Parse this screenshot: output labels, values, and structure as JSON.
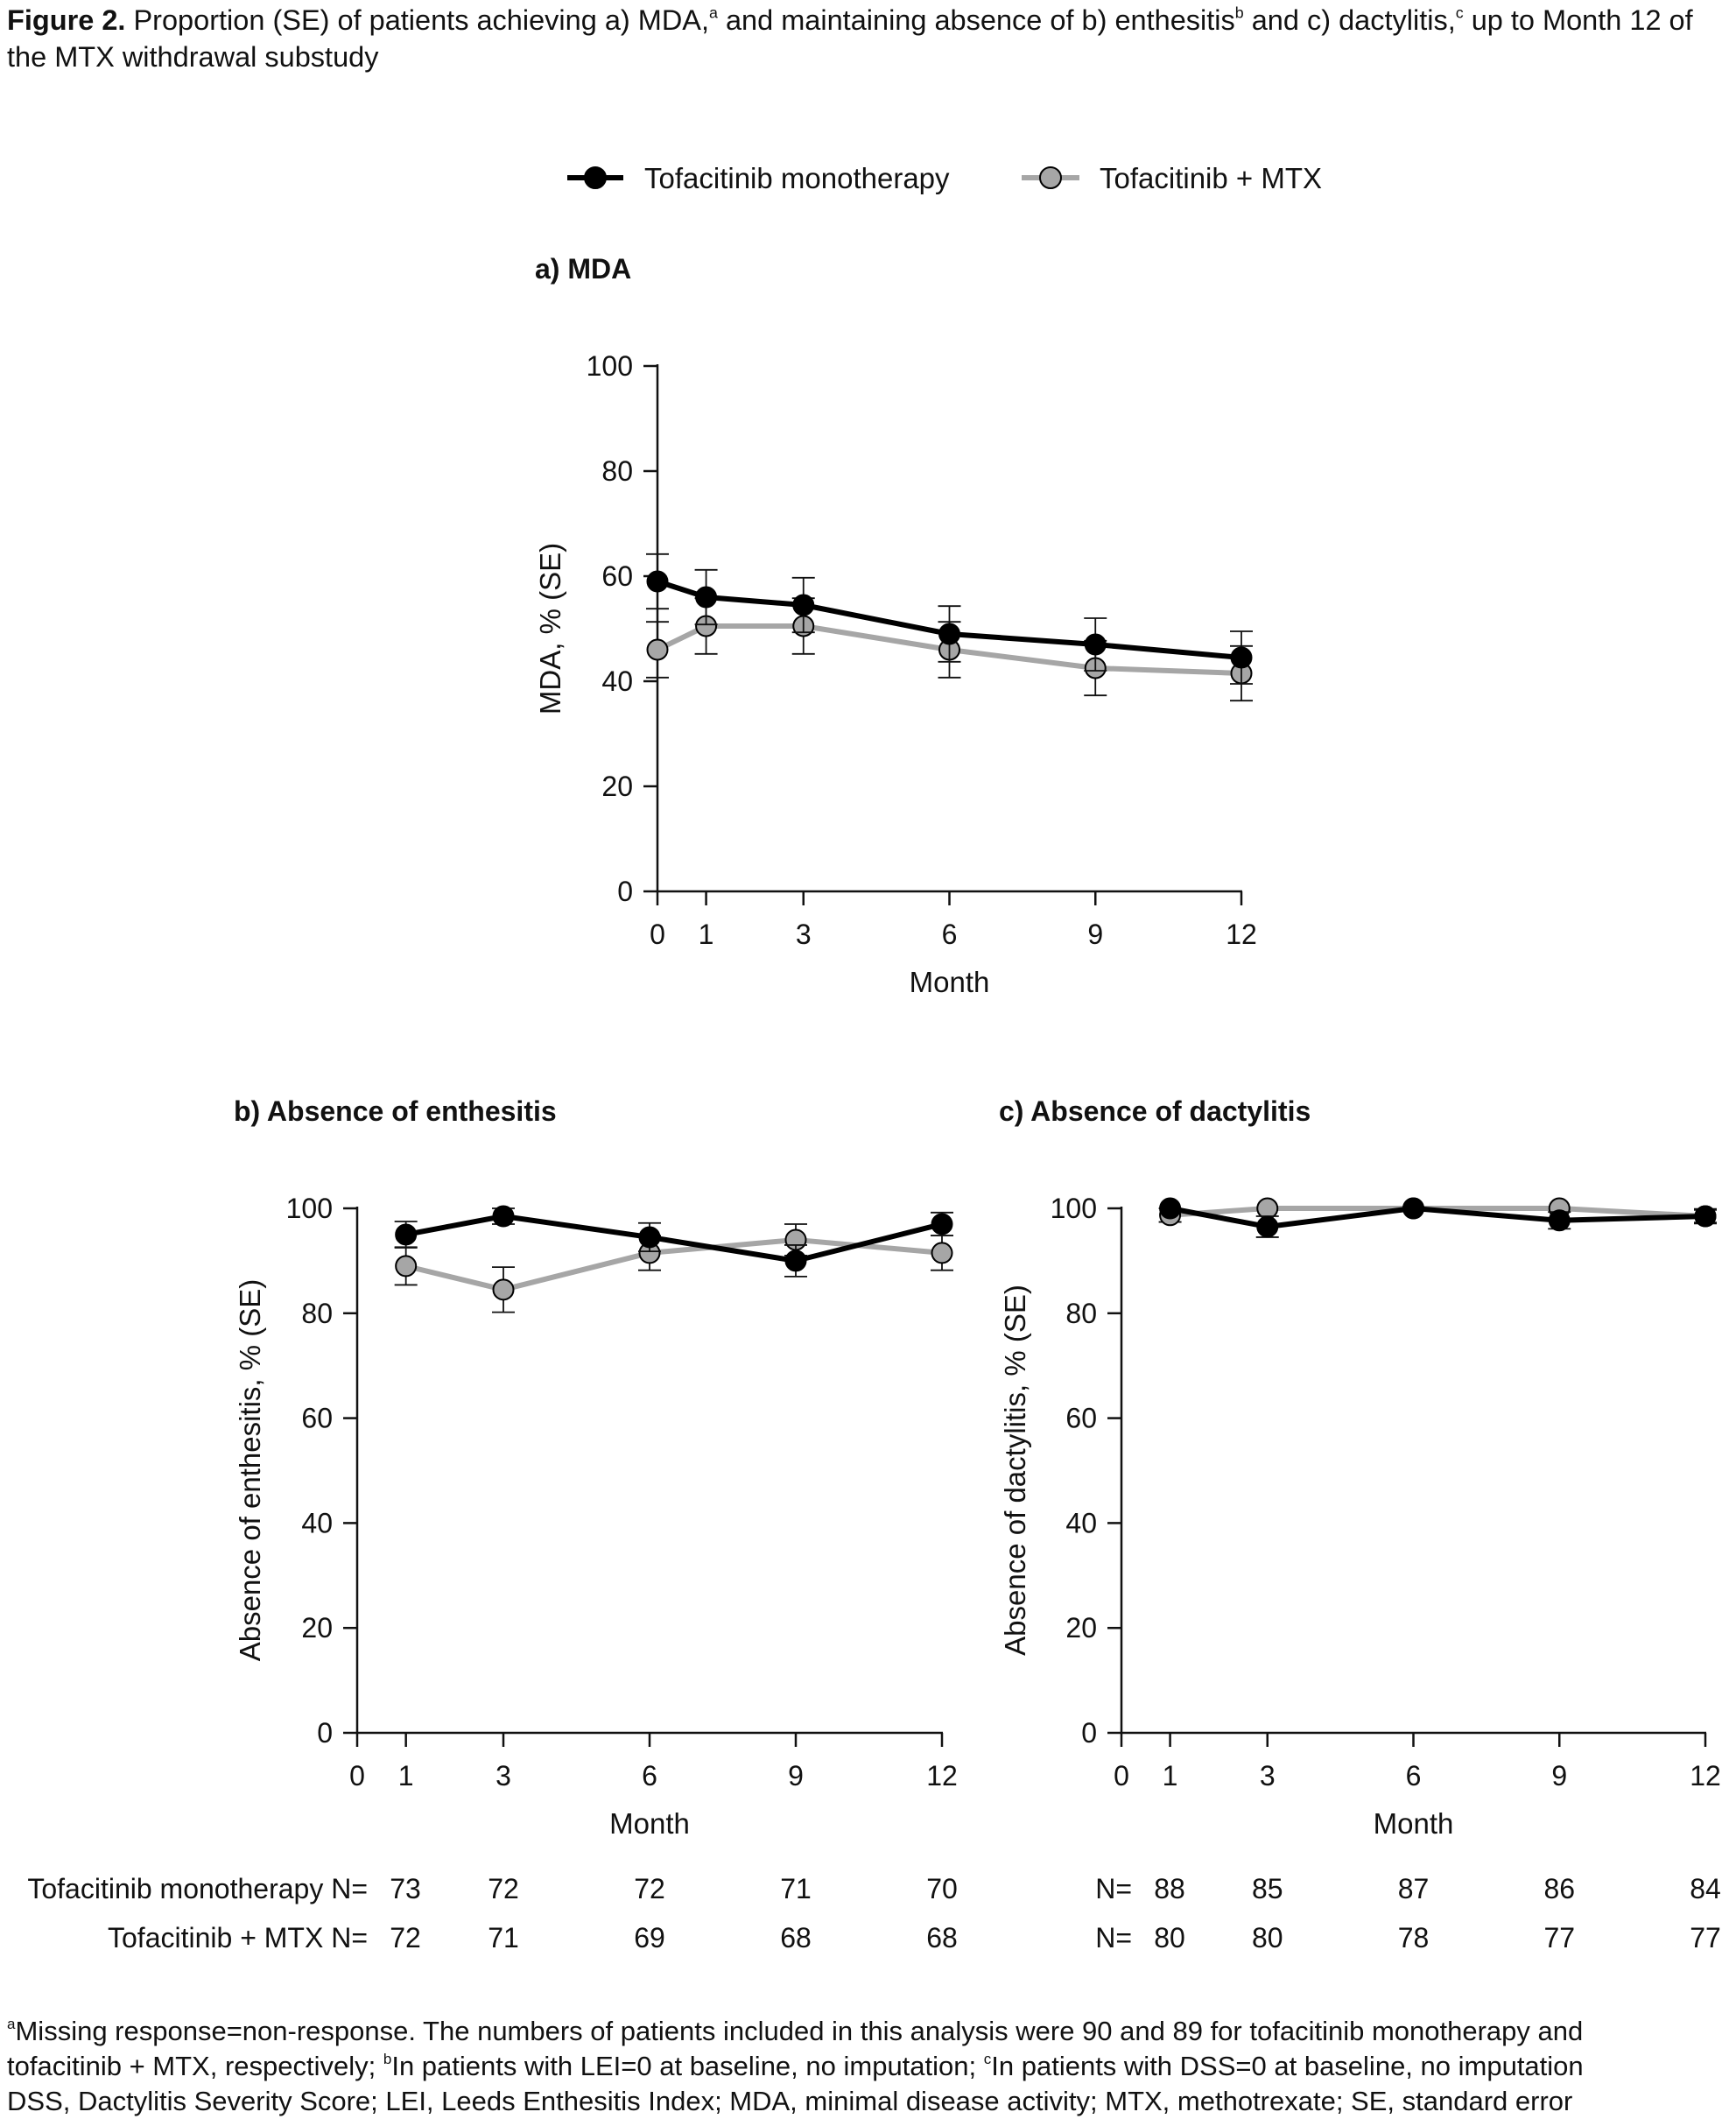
{
  "caption": {
    "label": "Figure 2.",
    "text_1": " Proportion (SE) of patients achieving a) MDA,",
    "sup_a": "a",
    "text_2": " and maintaining absence of b) enthesitis",
    "sup_b": "b",
    "text_3": " and c) dactylitis,",
    "sup_c": "c",
    "text_4": " up to Month 12 of the MTX withdrawal substudy"
  },
  "legend": {
    "series_1": "Tofacitinib monotherapy",
    "series_2": "Tofacitinib + MTX"
  },
  "colors": {
    "mono": "#000000",
    "combo": "#a6a6a6",
    "axis": "#111111"
  },
  "chart_data": [
    {
      "type": "line",
      "title": "a) MDA",
      "xlabel": "Month",
      "ylabel": "MDA, % (SE)",
      "xlim": [
        0,
        12
      ],
      "ylim": [
        0,
        100
      ],
      "xticks": [
        0,
        1,
        3,
        6,
        9,
        12
      ],
      "yticks": [
        0,
        20,
        40,
        60,
        80,
        100
      ],
      "x": [
        0,
        1,
        3,
        6,
        9,
        12
      ],
      "series": [
        {
          "name": "Tofacitinib monotherapy",
          "values": [
            59,
            56,
            54.5,
            49,
            47,
            44.5
          ],
          "se": [
            5.2,
            5.2,
            5.2,
            5.3,
            5,
            5
          ]
        },
        {
          "name": "Tofacitinib + MTX",
          "values": [
            46,
            50.5,
            50.5,
            46,
            42.5,
            41.5
          ],
          "se": [
            5.3,
            5.3,
            5.3,
            5.3,
            5.2,
            5.2
          ]
        }
      ]
    },
    {
      "type": "line",
      "title": "b) Absence of enthesitis",
      "xlabel": "Month",
      "ylabel": "Absence of enthesitis, % (SE)",
      "xlim": [
        0,
        12
      ],
      "ylim": [
        0,
        100
      ],
      "xticks": [
        0,
        1,
        3,
        6,
        9,
        12
      ],
      "yticks": [
        0,
        20,
        40,
        60,
        80,
        100
      ],
      "x": [
        1,
        3,
        6,
        9,
        12
      ],
      "series": [
        {
          "name": "Tofacitinib monotherapy",
          "values": [
            95,
            98.5,
            94.5,
            90,
            97
          ],
          "se": [
            2.5,
            1.5,
            2.7,
            3,
            2.2
          ]
        },
        {
          "name": "Tofacitinib + MTX",
          "values": [
            89,
            84.5,
            91.5,
            94,
            91.5
          ],
          "se": [
            3.6,
            4.3,
            3.3,
            3,
            3.3
          ]
        }
      ],
      "n_at_risk": {
        "rows": [
          {
            "label": "Tofacitinib monotherapy N=",
            "values": [
              "73",
              "72",
              "72",
              "71",
              "70"
            ]
          },
          {
            "label": "Tofacitinib + MTX N=",
            "values": [
              "72",
              "71",
              "69",
              "68",
              "68"
            ]
          }
        ]
      }
    },
    {
      "type": "line",
      "title": "c) Absence of dactylitis",
      "xlabel": "Month",
      "ylabel": "Absence of dactylitis, % (SE)",
      "xlim": [
        0,
        12
      ],
      "ylim": [
        0,
        100
      ],
      "xticks": [
        0,
        1,
        3,
        6,
        9,
        12
      ],
      "yticks": [
        0,
        20,
        40,
        60,
        80,
        100
      ],
      "x": [
        1,
        3,
        6,
        9,
        12
      ],
      "series": [
        {
          "name": "Tofacitinib monotherapy",
          "values": [
            100,
            96.5,
            100,
            97.7,
            98.5
          ],
          "se": [
            0,
            2,
            0,
            1.6,
            1.2
          ]
        },
        {
          "name": "Tofacitinib + MTX",
          "values": [
            98.7,
            100,
            100,
            100,
            98.5
          ],
          "se": [
            1.3,
            0,
            0,
            0,
            1.4
          ]
        }
      ],
      "n_at_risk": {
        "rows": [
          {
            "label": "N=",
            "values": [
              "88",
              "85",
              "87",
              "86",
              "84"
            ]
          },
          {
            "label": "N=",
            "values": [
              "80",
              "80",
              "78",
              "77",
              "77"
            ]
          }
        ]
      }
    }
  ],
  "footnote": {
    "sup_a": "a",
    "a_text": "Missing response=non-response. The numbers of patients included in this analysis were 90 and 89 for tofacitinib monotherapy and",
    "a_text_2": "tofacitinib + MTX, respectively; ",
    "sup_b": "b",
    "b_text": "In patients with LEI=0 at baseline, no imputation; ",
    "sup_c": "c",
    "c_text": "In patients with DSS=0 at baseline, no imputation",
    "abbrev": "DSS, Dactylitis Severity Score; LEI, Leeds Enthesitis Index; MDA, minimal disease activity; MTX, methotrexate; SE, standard error"
  }
}
